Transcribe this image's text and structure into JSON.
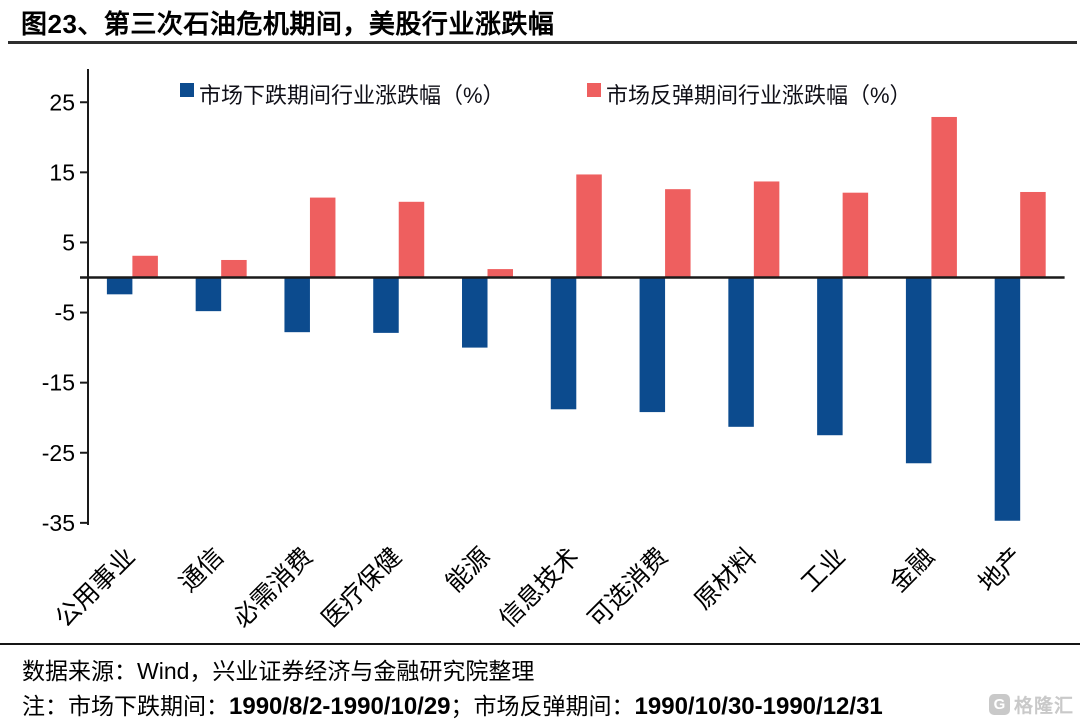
{
  "title": "图23、第三次石油危机期间，美股行业涨跌幅",
  "legend": {
    "decline_label": "市场下跌期间行业涨跌幅（%）",
    "rebound_label": "市场反弹期间行业涨跌幅（%）"
  },
  "colors": {
    "decline": "#0c4b8e",
    "rebound": "#ee5f5f",
    "axis": "#1a1a1a",
    "logo": "#c9c9c9"
  },
  "chart_data": {
    "type": "bar",
    "title": "图23、第三次石油危机期间，美股行业涨跌幅",
    "categories": [
      "公用事业",
      "通信",
      "必需消费",
      "医疗保健",
      "能源",
      "信息技术",
      "可选消费",
      "原材料",
      "工业",
      "金融",
      "地产"
    ],
    "series": [
      {
        "name": "市场下跌期间行业涨跌幅（%）",
        "values": [
          -2.4,
          -4.8,
          -7.8,
          -7.9,
          -10.0,
          -18.8,
          -19.2,
          -21.3,
          -22.5,
          -26.5,
          -34.7
        ]
      },
      {
        "name": "市场反弹期间行业涨跌幅（%）",
        "values": [
          3.1,
          2.5,
          11.4,
          10.8,
          1.2,
          14.7,
          12.6,
          13.7,
          12.1,
          22.9,
          12.2
        ]
      }
    ],
    "xlabel": "",
    "ylabel": "",
    "ylim": [
      -35.3,
      29.7
    ],
    "yticks": [
      25,
      15,
      5,
      -5,
      -15,
      -25,
      -35
    ],
    "grid": false,
    "legend_position": "top"
  },
  "footer": {
    "source": "数据来源：Wind，兴业证券经济与金融研究院整理",
    "note_prefix": "注：市场下跌期间：",
    "note_period1": "1990/8/2-1990/10/29",
    "note_separator": "；市场反弹期间：",
    "note_period2": "1990/10/30-1990/12/31"
  },
  "logo": {
    "letter": "G",
    "text": "格隆汇"
  }
}
